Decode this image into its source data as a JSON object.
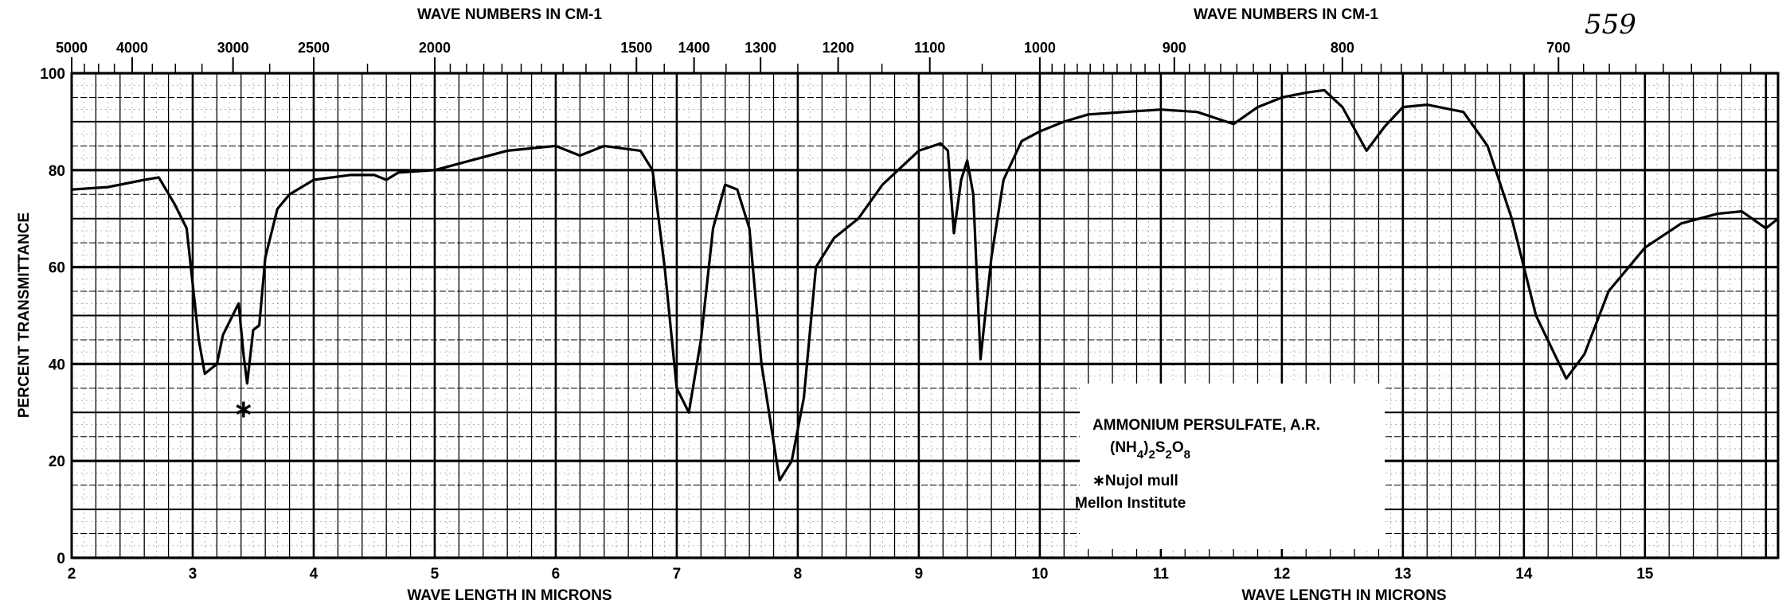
{
  "chart_data": {
    "type": "line",
    "title": "AMMONIUM PERSULFATE, A.R.",
    "formula": "(NH4)2S2O8",
    "formula_parts": [
      "(NH",
      "4",
      ")",
      "2",
      "S",
      "2",
      "O",
      "8"
    ],
    "note": "∗Nujol mull",
    "source": "Mellon Institute",
    "page_number": "559",
    "xlabel": "WAVE LENGTH IN MICRONS",
    "x2label": "WAVE NUMBERS IN CM-1",
    "ylabel": "PERCENT TRANSMITTANCE",
    "xlim": [
      2,
      16.1
    ],
    "ylim": [
      0,
      100
    ],
    "grid": true,
    "x_ticks": [
      2,
      3,
      4,
      5,
      6,
      7,
      8,
      9,
      10,
      11,
      12,
      13,
      14,
      15
    ],
    "x2_ticks": [
      5000,
      4000,
      3000,
      2500,
      2000,
      1500,
      1400,
      1300,
      1200,
      1100,
      1000,
      900,
      800,
      700
    ],
    "y_ticks": [
      0,
      20,
      40,
      60,
      80,
      100
    ],
    "marker": {
      "symbol": "∗",
      "x": 3.42,
      "y": 31,
      "meaning": "Nujol mull"
    },
    "series": [
      {
        "name": "Ammonium persulfate",
        "x": [
          2.0,
          2.3,
          2.6,
          2.72,
          2.85,
          2.95,
          3.05,
          3.1,
          3.2,
          3.25,
          3.33,
          3.38,
          3.42,
          3.45,
          3.5,
          3.55,
          3.6,
          3.7,
          3.8,
          4.0,
          4.3,
          4.5,
          4.6,
          4.7,
          5.0,
          5.3,
          5.6,
          6.0,
          6.2,
          6.4,
          6.7,
          6.8,
          6.9,
          7.0,
          7.1,
          7.2,
          7.3,
          7.4,
          7.5,
          7.6,
          7.7,
          7.85,
          7.95,
          8.05,
          8.15,
          8.3,
          8.5,
          8.7,
          9.0,
          9.18,
          9.24,
          9.29,
          9.35,
          9.4,
          9.45,
          9.51,
          9.6,
          9.7,
          9.85,
          10.0,
          10.2,
          10.4,
          10.7,
          11.0,
          11.3,
          11.6,
          11.8,
          12.0,
          12.2,
          12.35,
          12.5,
          12.7,
          12.85,
          13.0,
          13.2,
          13.5,
          13.7,
          13.9,
          14.1,
          14.35,
          14.5,
          14.7,
          15.0,
          15.3,
          15.6,
          15.8,
          16.0,
          16.1
        ],
        "y": [
          76,
          76.5,
          78,
          78.5,
          73,
          68,
          45,
          38,
          40,
          46,
          50,
          52.5,
          42,
          36,
          47,
          48,
          62,
          72,
          75,
          78,
          79,
          79,
          78,
          79.5,
          80,
          82,
          84,
          85,
          83,
          85,
          84,
          80,
          60,
          35,
          30,
          45,
          68,
          77,
          76,
          68,
          40,
          16,
          20,
          33,
          60,
          66,
          70,
          77,
          84,
          85.5,
          84,
          67,
          78,
          82,
          75,
          41,
          62,
          78,
          86,
          88,
          90,
          91.5,
          92,
          92.5,
          92,
          89.5,
          93,
          95,
          96,
          96.5,
          93,
          84,
          89,
          93,
          93.5,
          92,
          85,
          70,
          50,
          37,
          42,
          55,
          64,
          69,
          71,
          71.5,
          68,
          70
        ]
      }
    ]
  }
}
